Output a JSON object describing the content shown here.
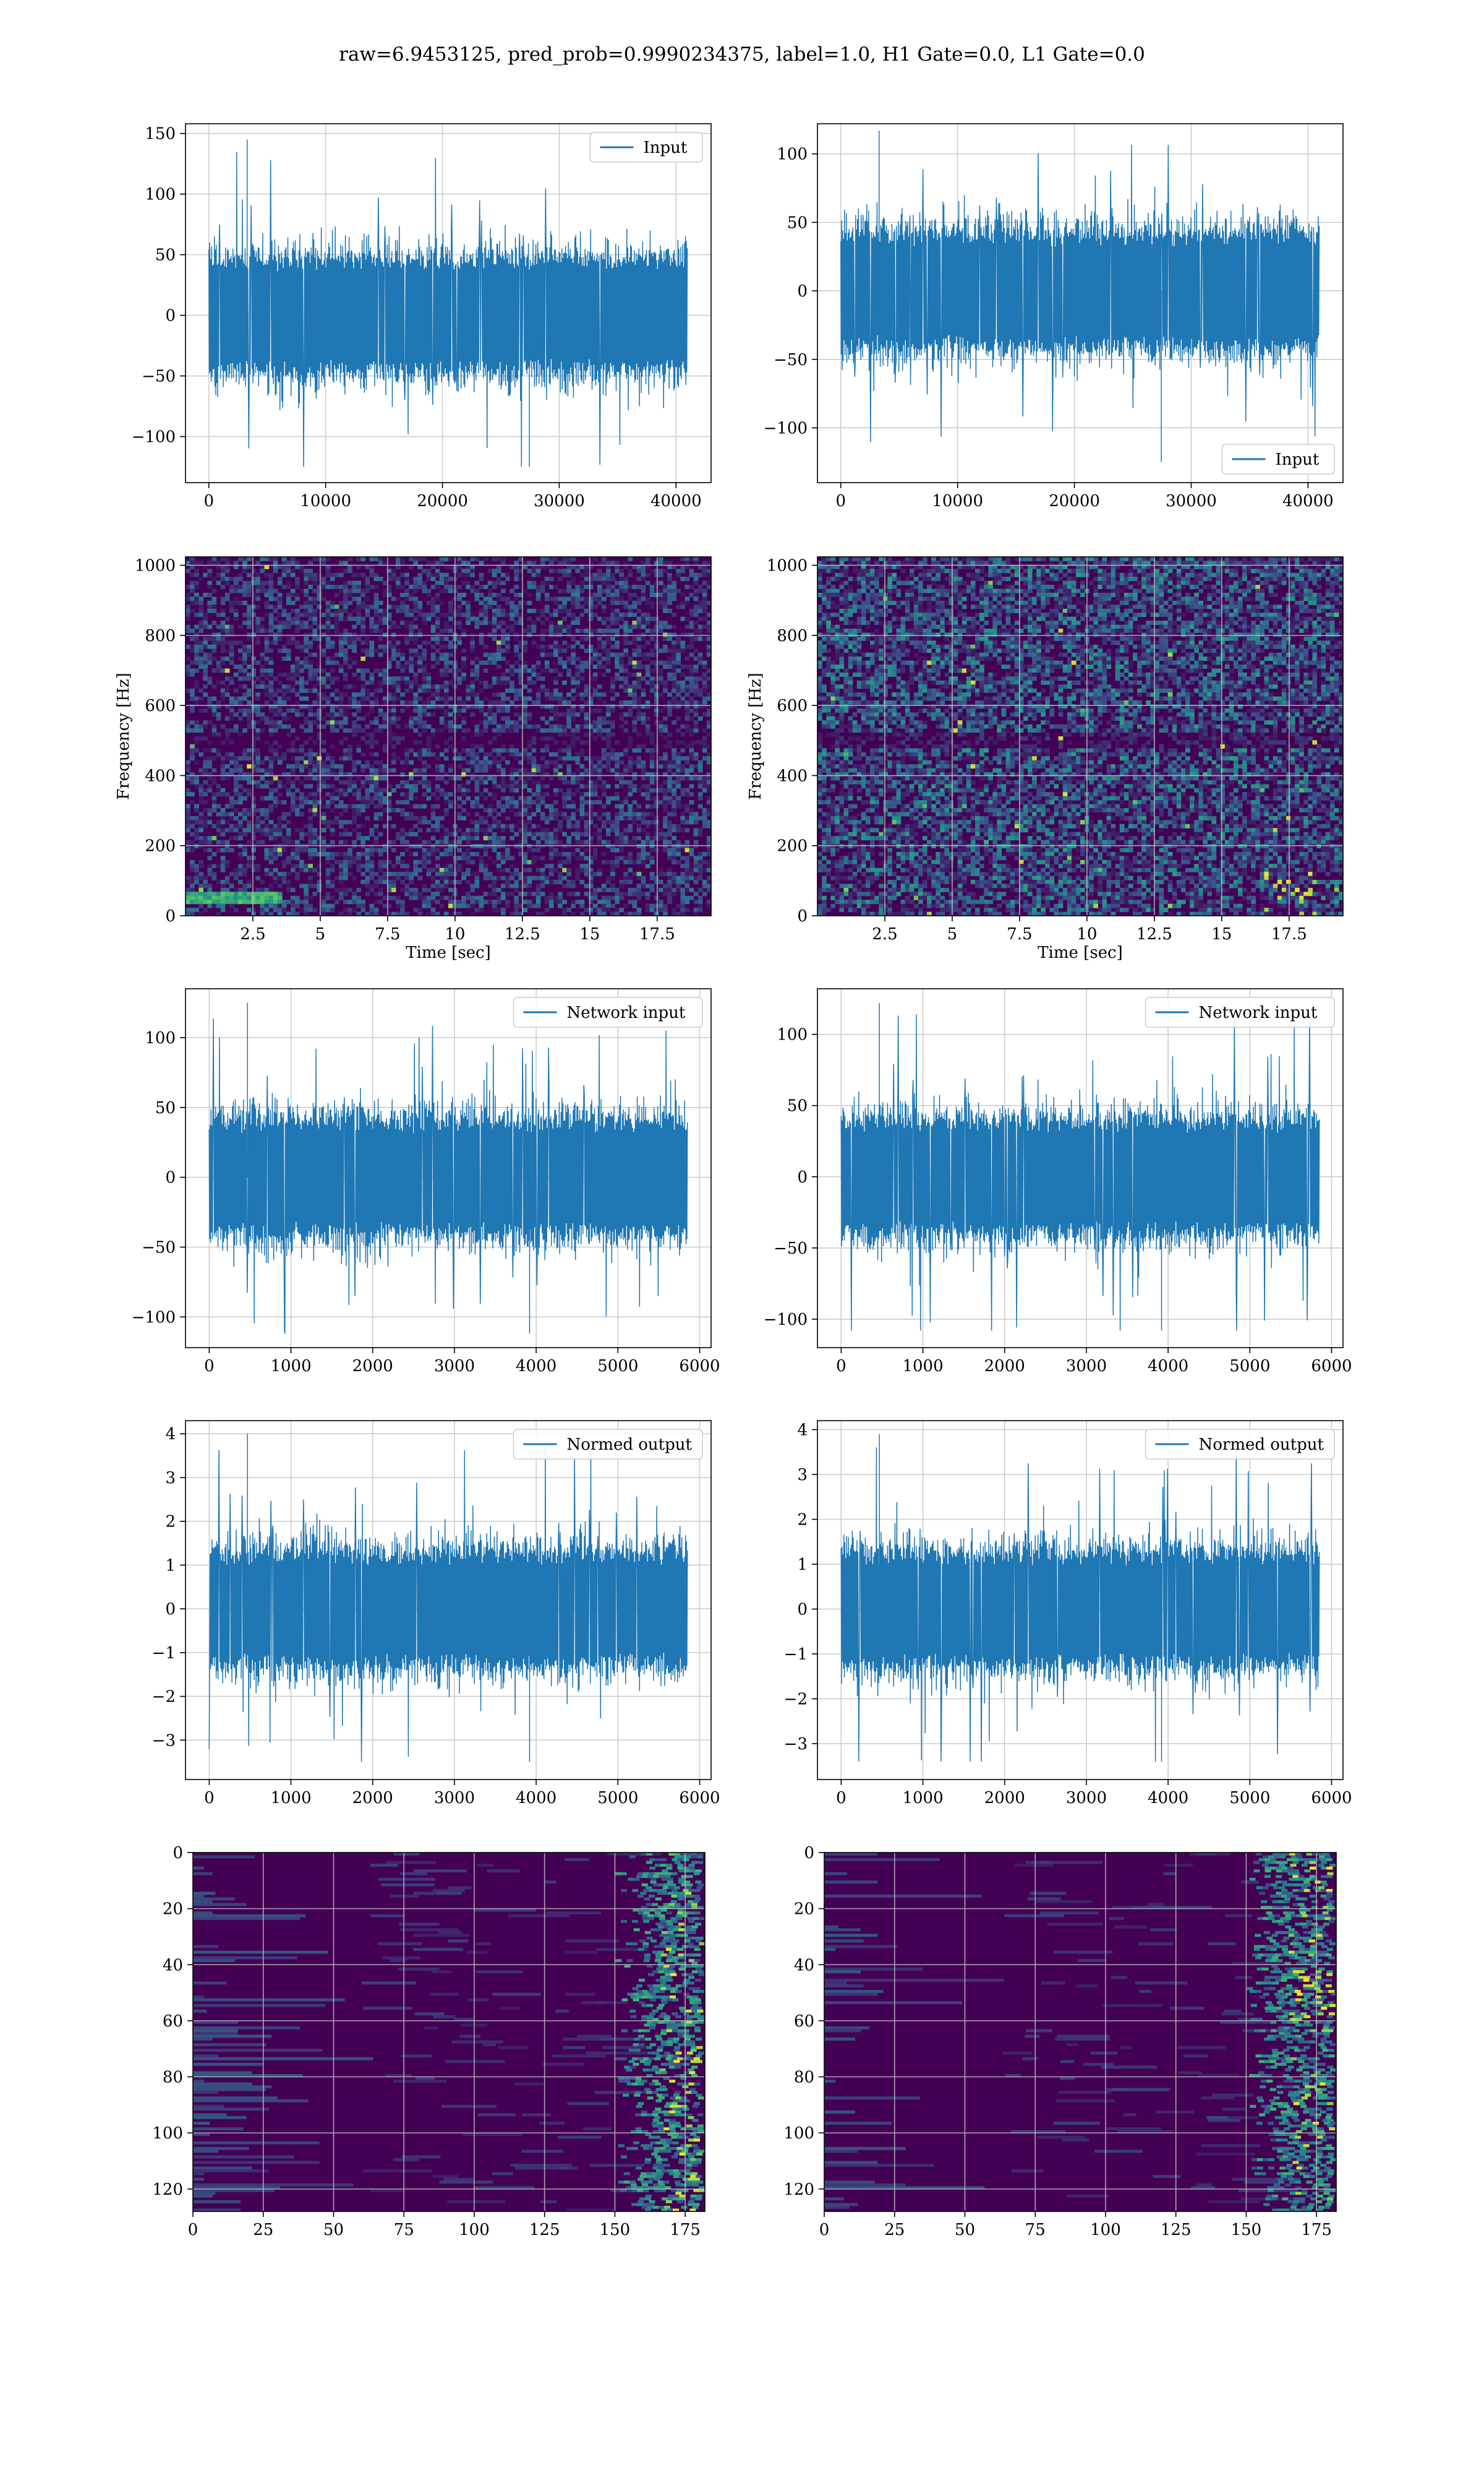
{
  "figure": {
    "suptitle": "raw=6.9453125, pred_prob=0.9990234375, label=1.0, H1 Gate=0.0, L1 Gate=0.0",
    "colors": {
      "line": "#1f77b4",
      "grid": "#cccccc",
      "viridis_low": "#440154",
      "viridis_mid": "#21918c",
      "viridis_high": "#fde725"
    }
  },
  "chart_data": [
    {
      "id": "raw-input-left",
      "type": "line",
      "series": [
        {
          "name": "Input",
          "n": 40960,
          "y_min": -125,
          "y_max": 145,
          "description_level": "dense noise, bulk about ±60"
        }
      ],
      "xlim": [
        -2000,
        43000
      ],
      "ylim": [
        -138,
        158
      ],
      "xticks": [
        0,
        10000,
        20000,
        30000,
        40000
      ],
      "yticks": [
        -100,
        -50,
        0,
        50,
        100,
        150
      ],
      "legend": "upper right",
      "grid": true,
      "xlabel": "",
      "ylabel": ""
    },
    {
      "id": "raw-input-right",
      "type": "line",
      "series": [
        {
          "name": "Input",
          "n": 40960,
          "y_min": -125,
          "y_max": 117
        }
      ],
      "xlim": [
        -2000,
        43000
      ],
      "ylim": [
        -140,
        122
      ],
      "xticks": [
        0,
        10000,
        20000,
        30000,
        40000
      ],
      "yticks": [
        -100,
        -50,
        0,
        50,
        100
      ],
      "legend": "lower right",
      "grid": true,
      "xlabel": "",
      "ylabel": ""
    },
    {
      "id": "spectrogram-left",
      "type": "heatmap",
      "xlim": [
        0,
        19.5
      ],
      "ylim": [
        0,
        1024
      ],
      "xticks": [
        2.5,
        5.0,
        7.5,
        10.0,
        12.5,
        15.0,
        17.5
      ],
      "yticks": [
        0,
        200,
        400,
        600,
        800,
        1000
      ],
      "xlabel": "Time [sec]",
      "ylabel": "Frequency [Hz]",
      "grid": true,
      "colormap": "viridis",
      "features": "low-frequency line near 50 Hz for t<3.5 s; dark band near 500 Hz"
    },
    {
      "id": "spectrogram-right",
      "type": "heatmap",
      "xlim": [
        0,
        19.5
      ],
      "ylim": [
        0,
        1024
      ],
      "xticks": [
        2.5,
        5.0,
        7.5,
        10.0,
        12.5,
        15.0,
        17.5
      ],
      "yticks": [
        0,
        200,
        400,
        600,
        800,
        1000
      ],
      "xlabel": "Time [sec]",
      "ylabel": "Frequency [Hz]",
      "grid": true,
      "colormap": "viridis",
      "features": "scattered bright spots, brighter speckles near t=17.5 s at low frequency"
    },
    {
      "id": "network-input-left",
      "type": "line",
      "series": [
        {
          "name": "Network input",
          "n": 5850,
          "y_min": -112,
          "y_max": 125
        }
      ],
      "xlim": [
        -290,
        6140
      ],
      "ylim": [
        -122,
        135
      ],
      "xticks": [
        0,
        1000,
        2000,
        3000,
        4000,
        5000,
        6000
      ],
      "yticks": [
        -100,
        -50,
        0,
        50,
        100
      ],
      "legend": "upper right",
      "grid": true,
      "xlabel": "",
      "ylabel": ""
    },
    {
      "id": "network-input-right",
      "type": "line",
      "series": [
        {
          "name": "Network input",
          "n": 5850,
          "y_min": -108,
          "y_max": 122
        }
      ],
      "xlim": [
        -290,
        6140
      ],
      "ylim": [
        -120,
        132
      ],
      "xticks": [
        0,
        1000,
        2000,
        3000,
        4000,
        5000,
        6000
      ],
      "yticks": [
        -100,
        -50,
        0,
        50,
        100
      ],
      "legend": "upper right",
      "grid": true,
      "xlabel": "",
      "ylabel": ""
    },
    {
      "id": "normed-output-left",
      "type": "line",
      "series": [
        {
          "name": "Normed output",
          "n": 5850,
          "y_min": -3.5,
          "y_max": 4.0
        }
      ],
      "xlim": [
        -290,
        6140
      ],
      "ylim": [
        -3.9,
        4.3
      ],
      "xticks": [
        0,
        1000,
        2000,
        3000,
        4000,
        5000,
        6000
      ],
      "yticks": [
        -3,
        -2,
        -1,
        0,
        1,
        2,
        3,
        4
      ],
      "legend": "upper right",
      "grid": true,
      "xlabel": "",
      "ylabel": ""
    },
    {
      "id": "normed-output-right",
      "type": "line",
      "series": [
        {
          "name": "Normed output",
          "n": 5850,
          "y_min": -3.4,
          "y_max": 3.9
        }
      ],
      "xlim": [
        -290,
        6140
      ],
      "ylim": [
        -3.8,
        4.2
      ],
      "xticks": [
        0,
        1000,
        2000,
        3000,
        4000,
        5000,
        6000
      ],
      "yticks": [
        -3,
        -2,
        -1,
        0,
        1,
        2,
        3,
        4
      ],
      "legend": "upper right",
      "grid": true,
      "xlabel": "",
      "ylabel": ""
    },
    {
      "id": "feature-map-left",
      "type": "heatmap",
      "xlim": [
        0,
        182
      ],
      "ylim": [
        128,
        0
      ],
      "xticks": [
        0,
        25,
        50,
        75,
        100,
        125,
        150,
        175
      ],
      "yticks": [
        0,
        20,
        40,
        60,
        80,
        100,
        120
      ],
      "grid": true,
      "colormap": "viridis",
      "y_inverted": true,
      "features": "mostly dark with horizontal streaks on the left; bright activations concentrated at x≈160–178"
    },
    {
      "id": "feature-map-right",
      "type": "heatmap",
      "xlim": [
        0,
        182
      ],
      "ylim": [
        128,
        0
      ],
      "xticks": [
        0,
        25,
        50,
        75,
        100,
        125,
        150,
        175
      ],
      "yticks": [
        0,
        20,
        40,
        60,
        80,
        100,
        120
      ],
      "grid": true,
      "colormap": "viridis",
      "y_inverted": true,
      "features": "mostly dark with streaks; brightest activations at x≈160–180, rows 40–60"
    }
  ]
}
